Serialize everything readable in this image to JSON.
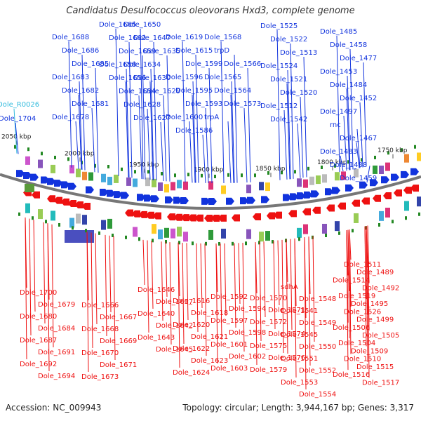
{
  "title": "Candidatus Desulfococcus oleovorans Hxd3, complete genome",
  "accession": "Accession: NC_009943",
  "topology": "Topology: circular; Length: 3,944,167 bp; Genes: 3,317",
  "colors": {
    "forward_strand": "#1133dd",
    "reverse_strand": "#ee1111",
    "trna_rna": "#33bbdd",
    "backbone": "#777777",
    "marker": "#228822"
  },
  "scale_ticks": [
    "2050 kbp",
    "2000 kbp",
    "1950 kbp",
    "1900 kbp",
    "1850 kbp",
    "1800 kbp",
    "1750 kbp"
  ],
  "top_labels": [
    "Dole_R0026",
    "Dole_1704",
    "Dole_1688",
    "Dole_1686",
    "Dole_1685",
    "Dole_1683",
    "Dole_1682",
    "Dole_1681",
    "Dole_1678",
    "Dole_1665",
    "Dole_1662",
    "Dole_1659",
    "Dole_1658",
    "Dole_1656",
    "Dole_1654",
    "Dole_1650",
    "Dole_1647",
    "Dole_1635",
    "Dole_1634",
    "Dole_1630",
    "Dole_1629",
    "Dole_1628",
    "Dole_1627",
    "Dole_1619",
    "Dole_1615",
    "Dole_1599",
    "Dole_1596",
    "Dole_1595",
    "Dole_1593",
    "Dole_1600",
    "Dole_1586",
    "Dole_1568",
    "trpD",
    "Dole_1566",
    "Dole_1565",
    "Dole_1564",
    "Dole_1573",
    "trpA",
    "Dole_1525",
    "Dole_1522",
    "Dole_1513",
    "Dole_1524",
    "Dole_1521",
    "Dole_1520",
    "Dole_1512",
    "Dole_1542",
    "Dole_1485",
    "Dole_1458",
    "Dole_1477",
    "Dole_1453",
    "Dole_1484",
    "Dole_1452",
    "Dole_1497",
    "rnc",
    "Dole_1467",
    "Dole_1483",
    "Dole_1488",
    "Dole_1459"
  ],
  "bottom_labels": [
    "Dole_1700",
    "Dole_1679",
    "Dole_1680",
    "Dole_1684",
    "Dole_1687",
    "Dole_1691",
    "Dole_1692",
    "Dole_1694",
    "Dole_1666",
    "Dole_1667",
    "Dole_1668",
    "Dole_1669",
    "Dole_1670",
    "Dole_1671",
    "Dole_1673",
    "Dole_1646",
    "Dole_1637",
    "Dole_1640",
    "Dole_1642",
    "Dole_1643",
    "Dole_1645",
    "Dole_1616",
    "Dole_1618",
    "Dole_1620",
    "Dole_1621",
    "Dole_1622",
    "Dole_1623",
    "Dole_1624",
    "Dole_1592",
    "Dole_1594",
    "Dole_1597",
    "Dole_1598",
    "Dole_1601",
    "Dole_1602",
    "Dole_1603",
    "Dole_1570",
    "Dole_1571",
    "Dole_1572",
    "Dole_1574",
    "Dole_1575",
    "Dole_1576",
    "Dole_1579",
    "sdhA",
    "Dole_1548",
    "Dole_1541",
    "Dole_1549",
    "Dole_1545",
    "Dole_1550",
    "Dole_1551",
    "Dole_1552",
    "Dole_1553",
    "Dole_1554",
    "Dole_1511",
    "Dole_1489",
    "Dole_1514",
    "Dole_1492",
    "Dole_1519",
    "Dole_1495",
    "Dole_1526",
    "Dole_1499",
    "Dole_1506",
    "Dole_1505",
    "Dole_1504",
    "Dole_1509",
    "Dole_1510",
    "Dole_1515",
    "Dole_1516",
    "Dole_1517"
  ]
}
